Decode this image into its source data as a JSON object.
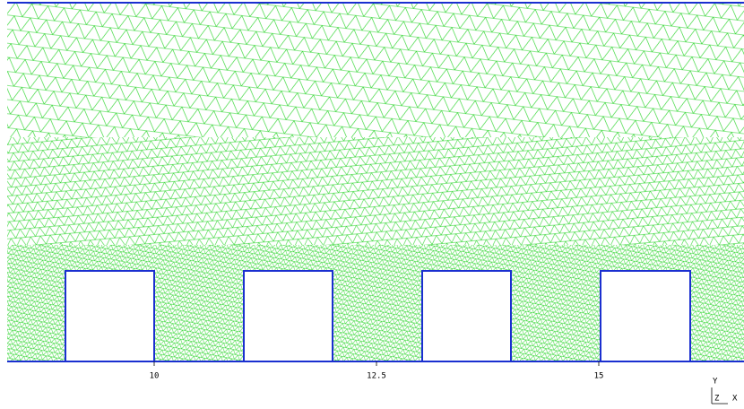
{
  "x_axis": {
    "ticks": [
      10,
      12.5,
      15
    ]
  },
  "triad": {
    "y": "Y",
    "z": "Z",
    "x": "X"
  }
}
